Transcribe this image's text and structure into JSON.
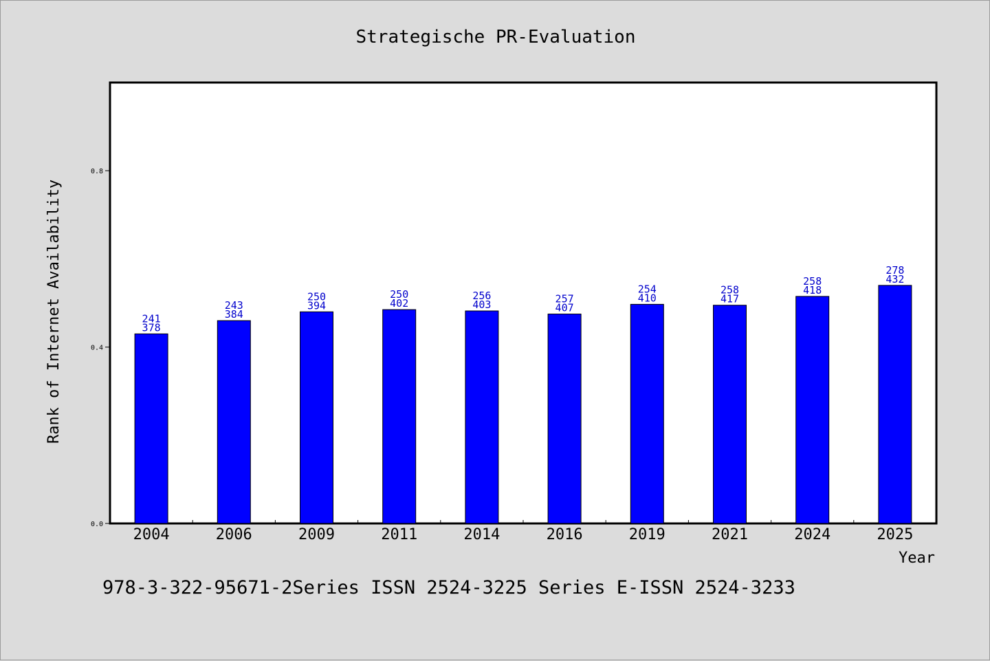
{
  "chart_data": {
    "type": "bar",
    "title": "Strategische PR-Evaluation",
    "xlabel": "Year",
    "ylabel": "Rank of Internet Availability",
    "categories": [
      "2004",
      "2006",
      "2009",
      "2011",
      "2014",
      "2016",
      "2019",
      "2021",
      "2024",
      "2025"
    ],
    "series": [
      {
        "values": [
          0.43,
          0.46,
          0.48,
          0.485,
          0.482,
          0.475,
          0.497,
          0.495,
          0.515,
          0.54
        ],
        "color": "#0000ff"
      }
    ],
    "data_labels_top": [
      "241",
      "243",
      "250",
      "250",
      "256",
      "257",
      "254",
      "258",
      "258",
      "278"
    ],
    "data_labels_bottom": [
      "378",
      "384",
      "394",
      "402",
      "403",
      "407",
      "410",
      "417",
      "418",
      "432"
    ],
    "yticks": [
      "0.0",
      "0.4",
      "0.8"
    ],
    "ytick_values": [
      0.0,
      0.4,
      0.8
    ],
    "ylim": [
      0.0,
      1.0
    ],
    "grid": false,
    "legend": "none",
    "footer": "978-3-322-95671-2Series ISSN 2524-3225 Series E-ISSN 2524-3233"
  }
}
